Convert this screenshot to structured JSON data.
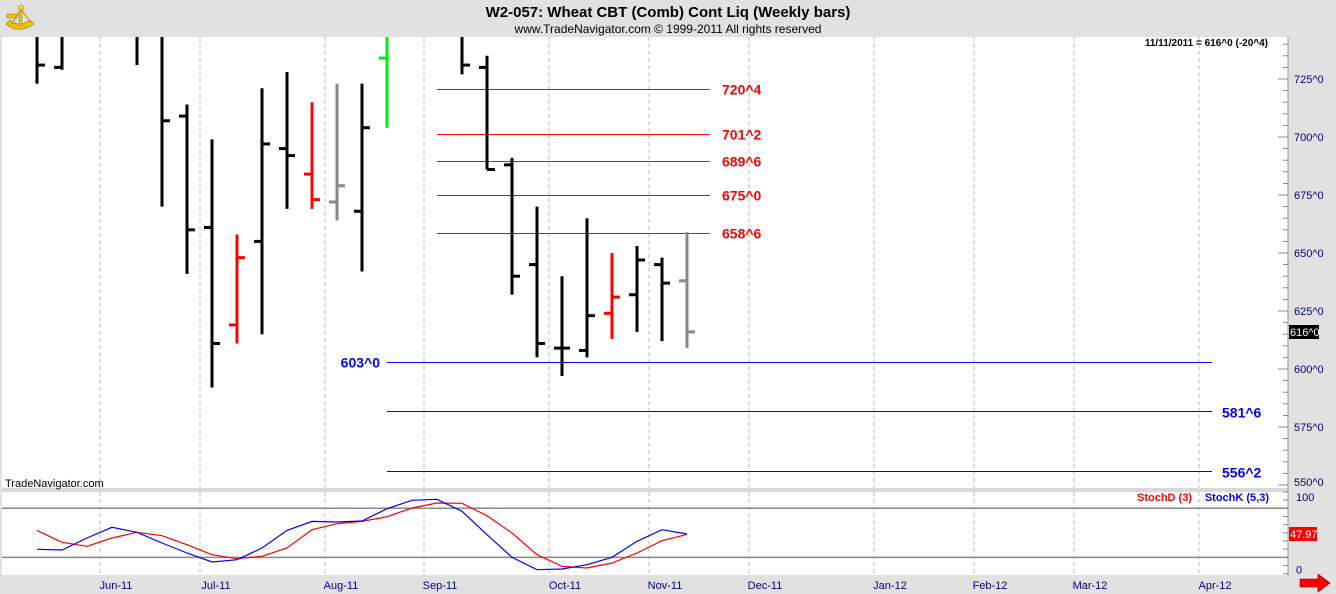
{
  "header": {
    "title": "W2-057:  Wheat CBT (Comb) Cont Liq  (Weekly bars)",
    "copyright": "www.TradeNavigator.com © 1999-2011 All rights reserved",
    "last_quote": "11/11/2011 = 616^0 (-20^4)",
    "watermark": "TradeNavigator.com",
    "logo_icon": "sextant-icon"
  },
  "colors": {
    "up_bar": "#000000",
    "down_bar": "#ff0000",
    "neutral_bar": "#888888",
    "green_bar": "#00ee00",
    "resistance": "#ff0000",
    "support": "#0000ff",
    "stoch_d": "#ff0000",
    "stoch_k": "#0000ff",
    "axis_text": "#000080"
  },
  "chart_data": [
    {
      "type": "ohlc",
      "title": "W2-057:  Wheat CBT (Comb) Cont Liq  (Weekly bars)",
      "y_tick_labels": [
        "725^0",
        "700^0",
        "675^0",
        "650^0",
        "625^0",
        "600^0",
        "575^0",
        "550^0"
      ],
      "y_ticks": [
        725,
        700,
        675,
        650,
        625,
        600,
        575,
        550
      ],
      "ylim": [
        548,
        743
      ],
      "x_tick_labels": [
        "Jun-11",
        "Jul-11",
        "Aug-11",
        "Sep-11",
        "Oct-11",
        "Nov-11",
        "Dec-11",
        "Jan-12",
        "Feb-12",
        "Mar-12",
        "Apr-12"
      ],
      "grid": "vertical dashed",
      "last_price_label": "616^0",
      "bars": [
        {
          "o": null,
          "h": null,
          "l": 723,
          "c": 731,
          "color": "black"
        },
        {
          "o": 730,
          "h": null,
          "l": 729,
          "c": null,
          "color": "black"
        },
        null,
        null,
        {
          "o": null,
          "h": null,
          "l": 731,
          "c": null,
          "color": "black"
        },
        {
          "o": null,
          "h": null,
          "l": 670,
          "c": 707,
          "color": "black"
        },
        {
          "o": 709,
          "h": 714,
          "l": 641,
          "c": 660,
          "color": "black"
        },
        {
          "o": 661,
          "h": 699,
          "l": 592,
          "c": 611,
          "color": "black"
        },
        {
          "o": 619,
          "h": 658,
          "l": 611,
          "c": 648,
          "color": "red"
        },
        {
          "o": 655,
          "h": 721,
          "l": 615,
          "c": 697,
          "color": "black"
        },
        {
          "o": 695,
          "h": 728,
          "l": 669,
          "c": 692,
          "color": "black"
        },
        {
          "o": 684,
          "h": 715,
          "l": 669,
          "c": 673,
          "color": "red"
        },
        {
          "o": 672,
          "h": 723,
          "l": 664,
          "c": 679,
          "color": "gray"
        },
        {
          "o": 668,
          "h": 723,
          "l": 642,
          "c": 704,
          "color": "black"
        },
        {
          "o": 734,
          "h": null,
          "l": 704,
          "c": null,
          "color": "green"
        },
        null,
        null,
        {
          "o": null,
          "h": null,
          "l": 727,
          "c": 731,
          "color": "black"
        },
        {
          "o": 730,
          "h": 735,
          "l": 686,
          "c": 686,
          "color": "black"
        },
        {
          "o": 688,
          "h": 691,
          "l": 632,
          "c": 640,
          "color": "black"
        },
        {
          "o": 645,
          "h": 670,
          "l": 605,
          "c": 611,
          "color": "black"
        },
        {
          "o": 609,
          "h": 640,
          "l": 597,
          "c": 609,
          "color": "black"
        },
        {
          "o": 608,
          "h": 665,
          "l": 605,
          "c": 623,
          "color": "black"
        },
        {
          "o": 624,
          "h": 650,
          "l": 613,
          "c": 631,
          "color": "red"
        },
        {
          "o": 632,
          "h": 653,
          "l": 616,
          "c": 647,
          "color": "black"
        },
        {
          "o": 645,
          "h": 648,
          "l": 612,
          "c": 637,
          "color": "black"
        },
        {
          "o": 638,
          "h": 659,
          "l": 609,
          "c": 616,
          "color": "gray"
        }
      ],
      "levels": [
        {
          "label": "720^4",
          "value": 720.5,
          "color": "red",
          "label_side": "right-of-line"
        },
        {
          "label": "701^2",
          "value": 701.25,
          "color": "red",
          "label_side": "right-of-line"
        },
        {
          "label": "689^6",
          "value": 689.75,
          "color": "red",
          "label_side": "right-of-line"
        },
        {
          "label": "675^0",
          "value": 675,
          "color": "red",
          "label_side": "right-of-line"
        },
        {
          "label": "658^6",
          "value": 658.75,
          "color": "red",
          "label_side": "right-of-line"
        },
        {
          "label": "603^0",
          "value": 603,
          "color": "blue",
          "label_side": "left"
        },
        {
          "label": "581^6",
          "value": 581.75,
          "color": "blue",
          "label_side": "right"
        },
        {
          "label": "556^2",
          "value": 556.25,
          "color": "blue",
          "label_side": "right"
        }
      ]
    },
    {
      "type": "line",
      "ylim": [
        0,
        100
      ],
      "y_tick_labels": [
        "100",
        "0"
      ],
      "reference_lines": [
        80,
        20
      ],
      "last_value_label": "47.97",
      "series": [
        {
          "name": "StochD (3)",
          "color": "#ff0000",
          "values": [
            53,
            38.4,
            33.5,
            43.6,
            50.6,
            46.5,
            35.5,
            23.2,
            18.3,
            21.3,
            31.4,
            53.8,
            61.2,
            64,
            69.7,
            80.4,
            86.5,
            86.1,
            71,
            49.8,
            23.2,
            9,
            6.9,
            13,
            25.3,
            40.3,
            48
          ]
        },
        {
          "name": "StochK (5,3)",
          "color": "#0000ff",
          "values": [
            29.8,
            29,
            43.6,
            56.7,
            50.6,
            37.5,
            25.3,
            14.3,
            17.1,
            31.4,
            53,
            64,
            63.2,
            64.5,
            79.5,
            89.8,
            91,
            76.3,
            47.7,
            20,
            4.9,
            5.7,
            11,
            20,
            39.6,
            53.8,
            48.5
          ]
        }
      ]
    }
  ]
}
